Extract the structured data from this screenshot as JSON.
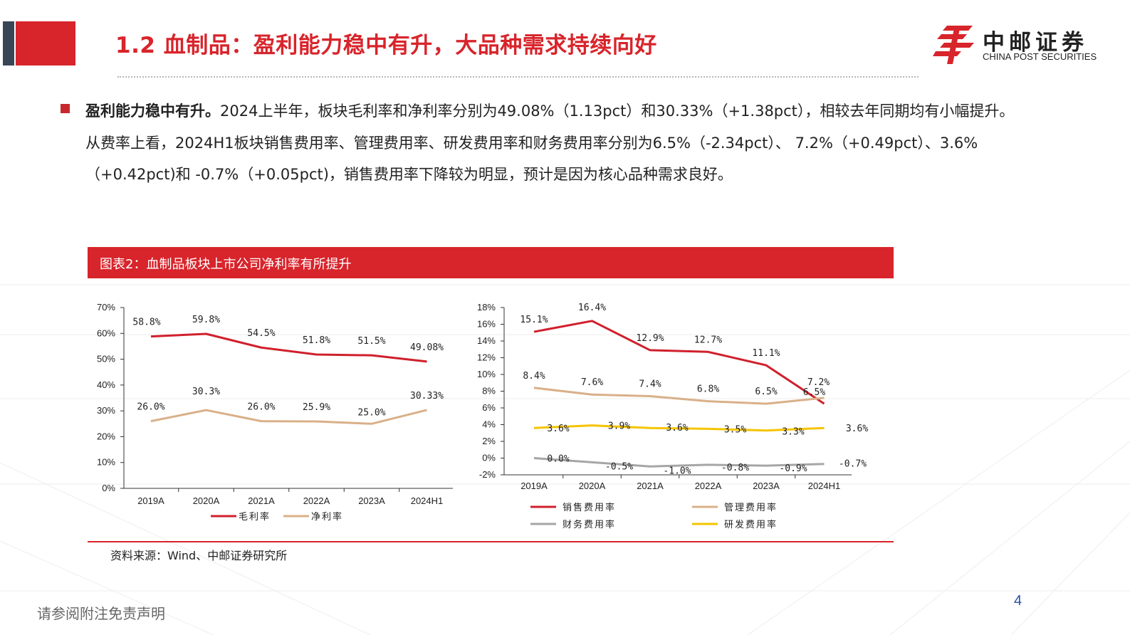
{
  "header": {
    "title": "1.2 血制品：盈利能力稳中有升，大品种需求持续向好",
    "logo_cn": "中邮证券",
    "logo_en": "CHINA POST SECURITIES"
  },
  "body": {
    "lead": "盈利能力稳中有升。",
    "text": "2024上半年，板块毛利率和净利率分别为49.08%（1.13pct）和30.33%（+1.38pct），相较去年同期均有小幅提升。从费率上看，2024H1板块销售费用率、管理费用率、研发费用率和财务费用率分别为6.5%（-2.34pct）、 7.2%（+0.49pct）、3.6%（+0.42pct)和 -0.7%（+0.05pct)，销售费用率下降较为明显，预计是因为核心品种需求良好。"
  },
  "figure": {
    "title": "图表2：血制品板块上市公司净利率有所提升",
    "source": "资料来源：Wind、中邮证券研究所"
  },
  "footer": {
    "disclaimer": "请参阅附注免责声明",
    "page": "4"
  },
  "colors": {
    "brand_red": "#d8242b",
    "series_red": "#d0202c",
    "series_tan": "#d9b089",
    "series_gray": "#a6a6a6",
    "series_yellow": "#f5c400"
  },
  "chart_data": [
    {
      "type": "line",
      "categories": [
        "2019A",
        "2020A",
        "2021A",
        "2022A",
        "2023A",
        "2024H1"
      ],
      "ylim": [
        0,
        70
      ],
      "yticks": [
        "0%",
        "10%",
        "20%",
        "30%",
        "40%",
        "50%",
        "60%",
        "70%"
      ],
      "grid": false,
      "legend": "bottom",
      "series": [
        {
          "name": "毛利率",
          "color": "#d0202c",
          "values": [
            58.8,
            59.8,
            54.5,
            51.8,
            51.5,
            49.08
          ],
          "labels": [
            "58.8%",
            "59.8%",
            "54.5%",
            "51.8%",
            "51.5%",
            "49.08%"
          ]
        },
        {
          "name": "净利率",
          "color": "#d9b089",
          "values": [
            26.0,
            30.3,
            26.0,
            25.9,
            25.0,
            30.33
          ],
          "labels": [
            "26.0%",
            "30.3%",
            "26.0%",
            "25.9%",
            "25.0%",
            "30.33%"
          ]
        }
      ]
    },
    {
      "type": "line",
      "categories": [
        "2019A",
        "2020A",
        "2021A",
        "2022A",
        "2023A",
        "2024H1"
      ],
      "ylim": [
        -2,
        18
      ],
      "yticks": [
        "-2%",
        "0%",
        "2%",
        "4%",
        "6%",
        "8%",
        "10%",
        "12%",
        "14%",
        "16%",
        "18%"
      ],
      "grid": false,
      "legend": "bottom",
      "series": [
        {
          "name": "销售费用率",
          "color": "#d0202c",
          "values": [
            15.1,
            16.4,
            12.9,
            12.7,
            11.1,
            6.5
          ],
          "labels": [
            "15.1%",
            "16.4%",
            "12.9%",
            "12.7%",
            "11.1%",
            "6.5%"
          ]
        },
        {
          "name": "管理费用率",
          "color": "#d9b089",
          "values": [
            8.4,
            7.6,
            7.4,
            6.8,
            6.5,
            7.2
          ],
          "labels": [
            "8.4%",
            "7.6%",
            "7.4%",
            "6.8%",
            "6.5%",
            "7.2%"
          ]
        },
        {
          "name": "财务费用率",
          "color": "#a6a6a6",
          "values": [
            0.0,
            -0.5,
            -1.0,
            -0.8,
            -0.9,
            -0.7
          ],
          "labels": [
            "0.0%",
            "-0.5%",
            "-1.0%",
            "-0.8%",
            "-0.9%",
            "-0.7%"
          ]
        },
        {
          "name": "研发费用率",
          "color": "#f5c400",
          "values": [
            3.6,
            3.9,
            3.6,
            3.5,
            3.3,
            3.6
          ],
          "labels": [
            "3.6%",
            "3.9%",
            "3.6%",
            "3.5%",
            "3.3%",
            "3.6%"
          ]
        }
      ]
    }
  ]
}
